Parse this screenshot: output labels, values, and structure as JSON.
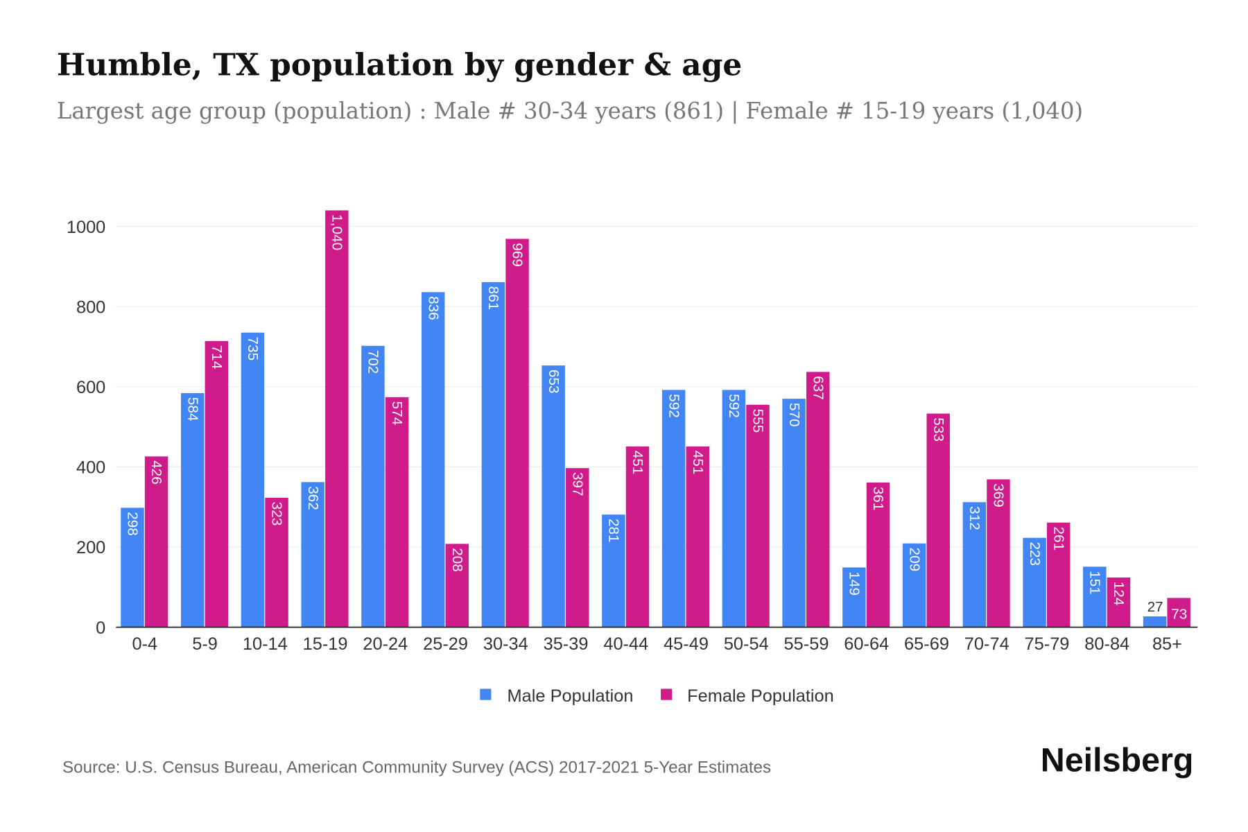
{
  "title": "Humble, TX population by gender & age",
  "subtitle": "Largest age group (population) : Male # 30-34 years (861) | Female # 15-19 years (1,040)",
  "source": "Source: U.S. Census Bureau, American Community Survey (ACS) 2017-2021 5-Year Estimates",
  "brand": "Neilsberg",
  "chart_data": {
    "type": "bar",
    "categories": [
      "0-4",
      "5-9",
      "10-14",
      "15-19",
      "20-24",
      "25-29",
      "30-34",
      "35-39",
      "40-44",
      "45-49",
      "50-54",
      "55-59",
      "60-64",
      "65-69",
      "70-74",
      "75-79",
      "80-84",
      "85+"
    ],
    "series": [
      {
        "name": "Male Population",
        "color": "#4285f4",
        "values": [
          298,
          584,
          735,
          362,
          702,
          836,
          861,
          653,
          281,
          592,
          592,
          570,
          149,
          209,
          312,
          223,
          151,
          27
        ]
      },
      {
        "name": "Female Population",
        "color": "#d01c8b",
        "values": [
          426,
          714,
          323,
          1040,
          574,
          208,
          969,
          397,
          451,
          451,
          555,
          637,
          361,
          533,
          369,
          261,
          124,
          73
        ]
      }
    ],
    "data_labels": {
      "male": [
        "298",
        "584",
        "735",
        "362",
        "702",
        "836",
        "861",
        "653",
        "281",
        "592",
        "592",
        "570",
        "149",
        "209",
        "312",
        "223",
        "151",
        "27"
      ],
      "female": [
        "426",
        "714",
        "323",
        "1,040",
        "574",
        "208",
        "969",
        "397",
        "451",
        "451",
        "555",
        "637",
        "361",
        "533",
        "369",
        "261",
        "124",
        "73"
      ]
    },
    "yticks": [
      "0",
      "200",
      "400",
      "600",
      "800",
      "1000"
    ],
    "ylim": [
      0,
      1000
    ],
    "grid": true,
    "legend": "bottom"
  }
}
